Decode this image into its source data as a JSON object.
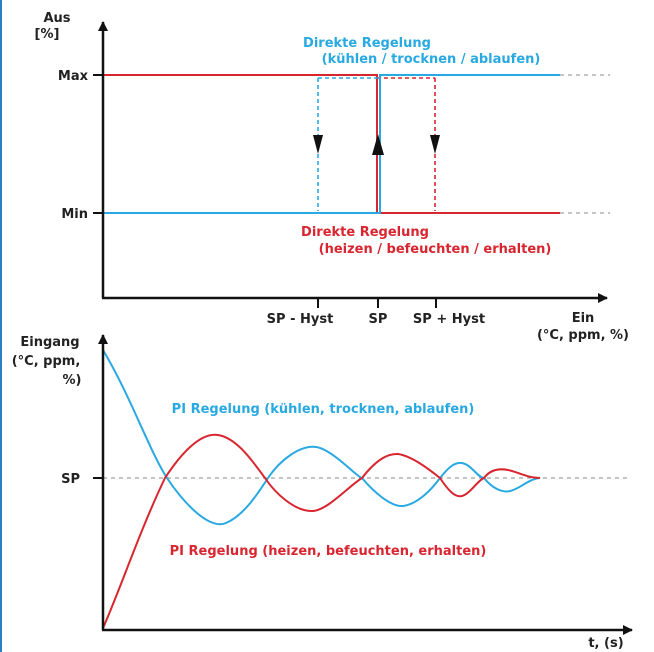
{
  "colors": {
    "blue": "#29a9e1",
    "red": "#d9252f",
    "axis": "#111111",
    "guide": "#888888"
  },
  "top_diagram": {
    "y_axis_label_line1": "Aus",
    "y_axis_label_line2": "[%]",
    "y_tick_max": "Max",
    "y_tick_min": "Min",
    "x_tick_sp_minus": "SP - Hyst",
    "x_tick_sp": "SP",
    "x_tick_sp_plus": "SP + Hyst",
    "x_axis_label_line1": "Ein",
    "x_axis_label_line2": "(°C, ppm, %)",
    "blue_label_line1": "Direkte Regelung",
    "blue_label_line2": "(kühlen / trocknen / ablaufen)",
    "red_label_line1": "Direkte Regelung",
    "red_label_line2": "(heizen / befeuchten / erhalten)"
  },
  "bottom_diagram": {
    "y_axis_label_line1": "Eingang",
    "y_axis_label_line2": "(°C, ppm,",
    "y_axis_label_line3": "%)",
    "y_tick_sp": "SP",
    "x_axis_label": "t, (s)",
    "blue_label": "PI Regelung (kühlen, trocknen, ablaufen)",
    "red_label": "PI Regelung (heizen, befeuchten, erhalten)"
  }
}
